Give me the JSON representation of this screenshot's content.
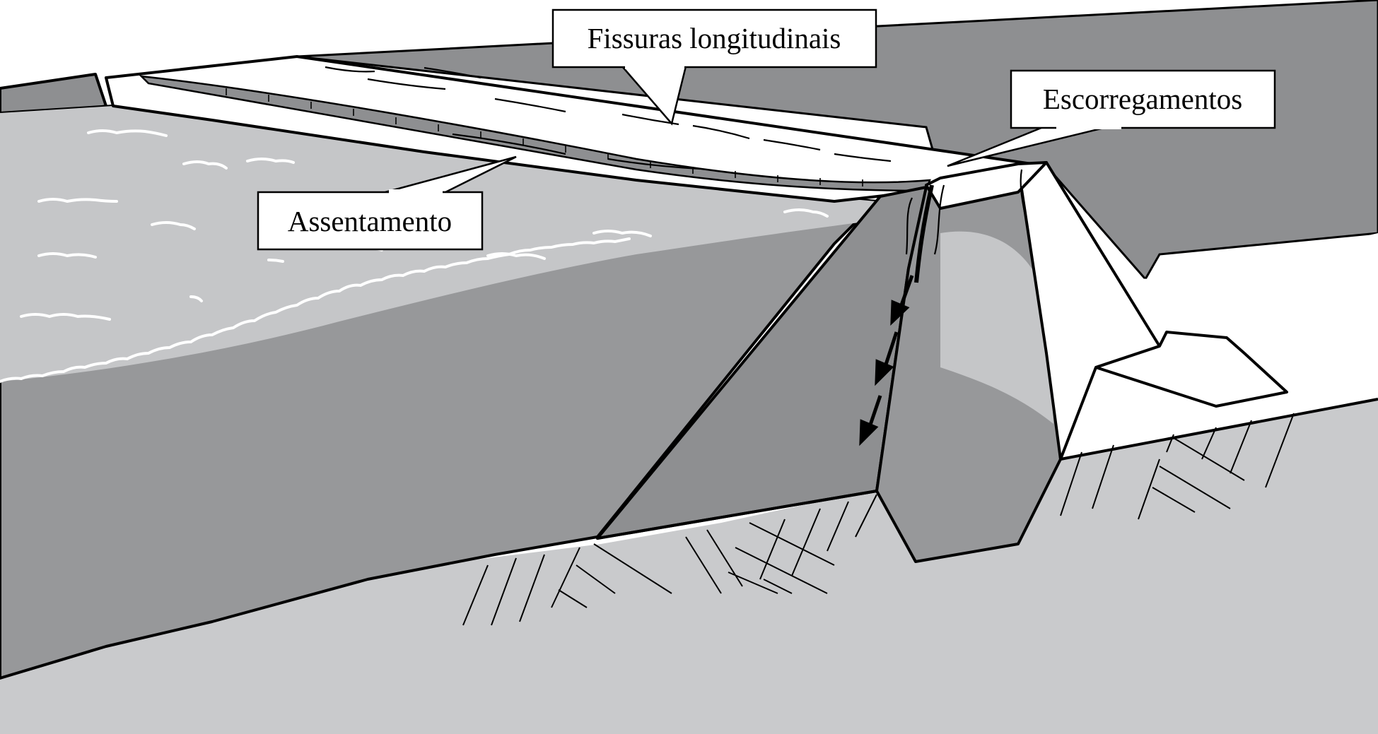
{
  "diagram": {
    "labels": {
      "longitudinal_cracks": "Fissuras longitudinais",
      "slides": "Escorregamentos",
      "settlement": "Assentamento"
    }
  },
  "colors": {
    "background": "#ffffff",
    "ground": "#c9cacc",
    "dam_face": "#97989a",
    "reservoir_far": "#c5c6c8",
    "dark_slope": "#8e8f91",
    "outline": "#000000"
  }
}
